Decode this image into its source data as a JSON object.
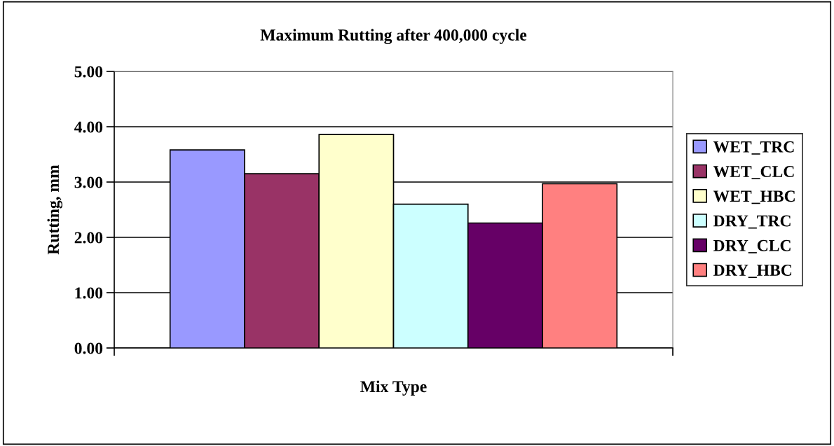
{
  "chart_data": {
    "type": "bar",
    "title": "Maximum Rutting after 400,000 cycle",
    "xlabel": "Mix Type",
    "ylabel": "Rutting, mm",
    "categories": [
      null
    ],
    "series": [
      {
        "name": "WET_TRC",
        "color": "#9999ff",
        "values": [
          3.58
        ]
      },
      {
        "name": "WET_CLC",
        "color": "#993366",
        "values": [
          3.15
        ]
      },
      {
        "name": "WET_HBC",
        "color": "#ffffcc",
        "values": [
          3.86
        ]
      },
      {
        "name": "DRY_TRC",
        "color": "#ccffff",
        "values": [
          2.6
        ]
      },
      {
        "name": "DRY_CLC",
        "color": "#660066",
        "values": [
          2.26
        ]
      },
      {
        "name": "DRY_HBC",
        "color": "#ff8080",
        "values": [
          2.97
        ]
      }
    ],
    "ylim": [
      0,
      5
    ],
    "yticks": [
      {
        "value": 0,
        "label": "0.00"
      },
      {
        "value": 1,
        "label": "1.00"
      },
      {
        "value": 2,
        "label": "2.00"
      },
      {
        "value": 3,
        "label": "3.00"
      },
      {
        "value": 4,
        "label": "4.00"
      },
      {
        "value": 5,
        "label": "5.00"
      }
    ],
    "grid": "y",
    "legend": "right"
  }
}
